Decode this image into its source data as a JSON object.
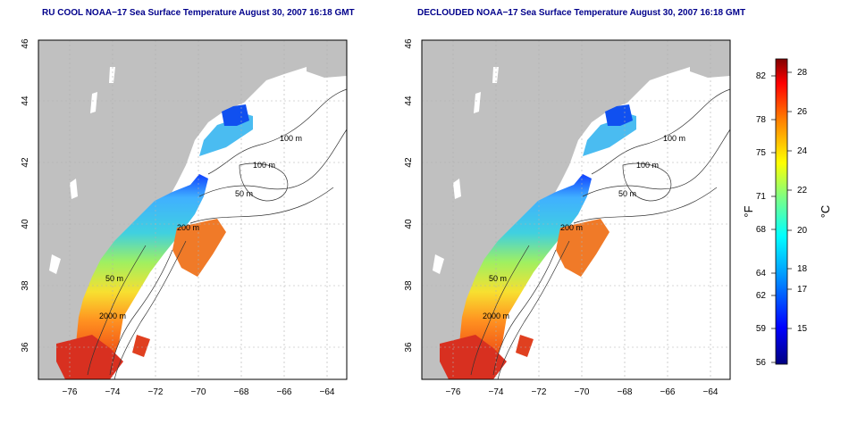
{
  "panels": [
    {
      "title": "RU COOL NOAA−17 Sea Surface Temperature August 30, 2007 16:18 GMT",
      "lon_ticks": [
        "−76",
        "−74",
        "−72",
        "−70",
        "−68",
        "−66",
        "−64"
      ],
      "lat_ticks": [
        "36",
        "38",
        "40",
        "42",
        "44",
        "46"
      ],
      "contour_labels": [
        "100 m",
        "100 m",
        "50 m",
        "200 m",
        "50 m",
        "2000 m"
      ]
    },
    {
      "title": "DECLOUDED NOAA−17 Sea Surface Temperature August 30, 2007 16:18 GMT",
      "lon_ticks": [
        "−76",
        "−74",
        "−72",
        "−70",
        "−68",
        "−66",
        "−64"
      ],
      "lat_ticks": [
        "36",
        "38",
        "40",
        "42",
        "44",
        "46"
      ],
      "contour_labels": [
        "100 m",
        "100 m",
        "50 m",
        "200 m",
        "50 m",
        "2000 m"
      ]
    }
  ],
  "colorbar": {
    "fahrenheit_label": "°F",
    "celsius_label": "°C",
    "fahrenheit_ticks": [
      "56",
      "59",
      "62",
      "64",
      "68",
      "71",
      "75",
      "78",
      "82"
    ],
    "celsius_ticks": [
      "15",
      "17",
      "18",
      "20",
      "22",
      "24",
      "26",
      "28"
    ],
    "colors": [
      "#000080",
      "#0000ff",
      "#00a0ff",
      "#00ffff",
      "#80ff80",
      "#ffff00",
      "#ff8000",
      "#ff0000",
      "#800000"
    ]
  }
}
